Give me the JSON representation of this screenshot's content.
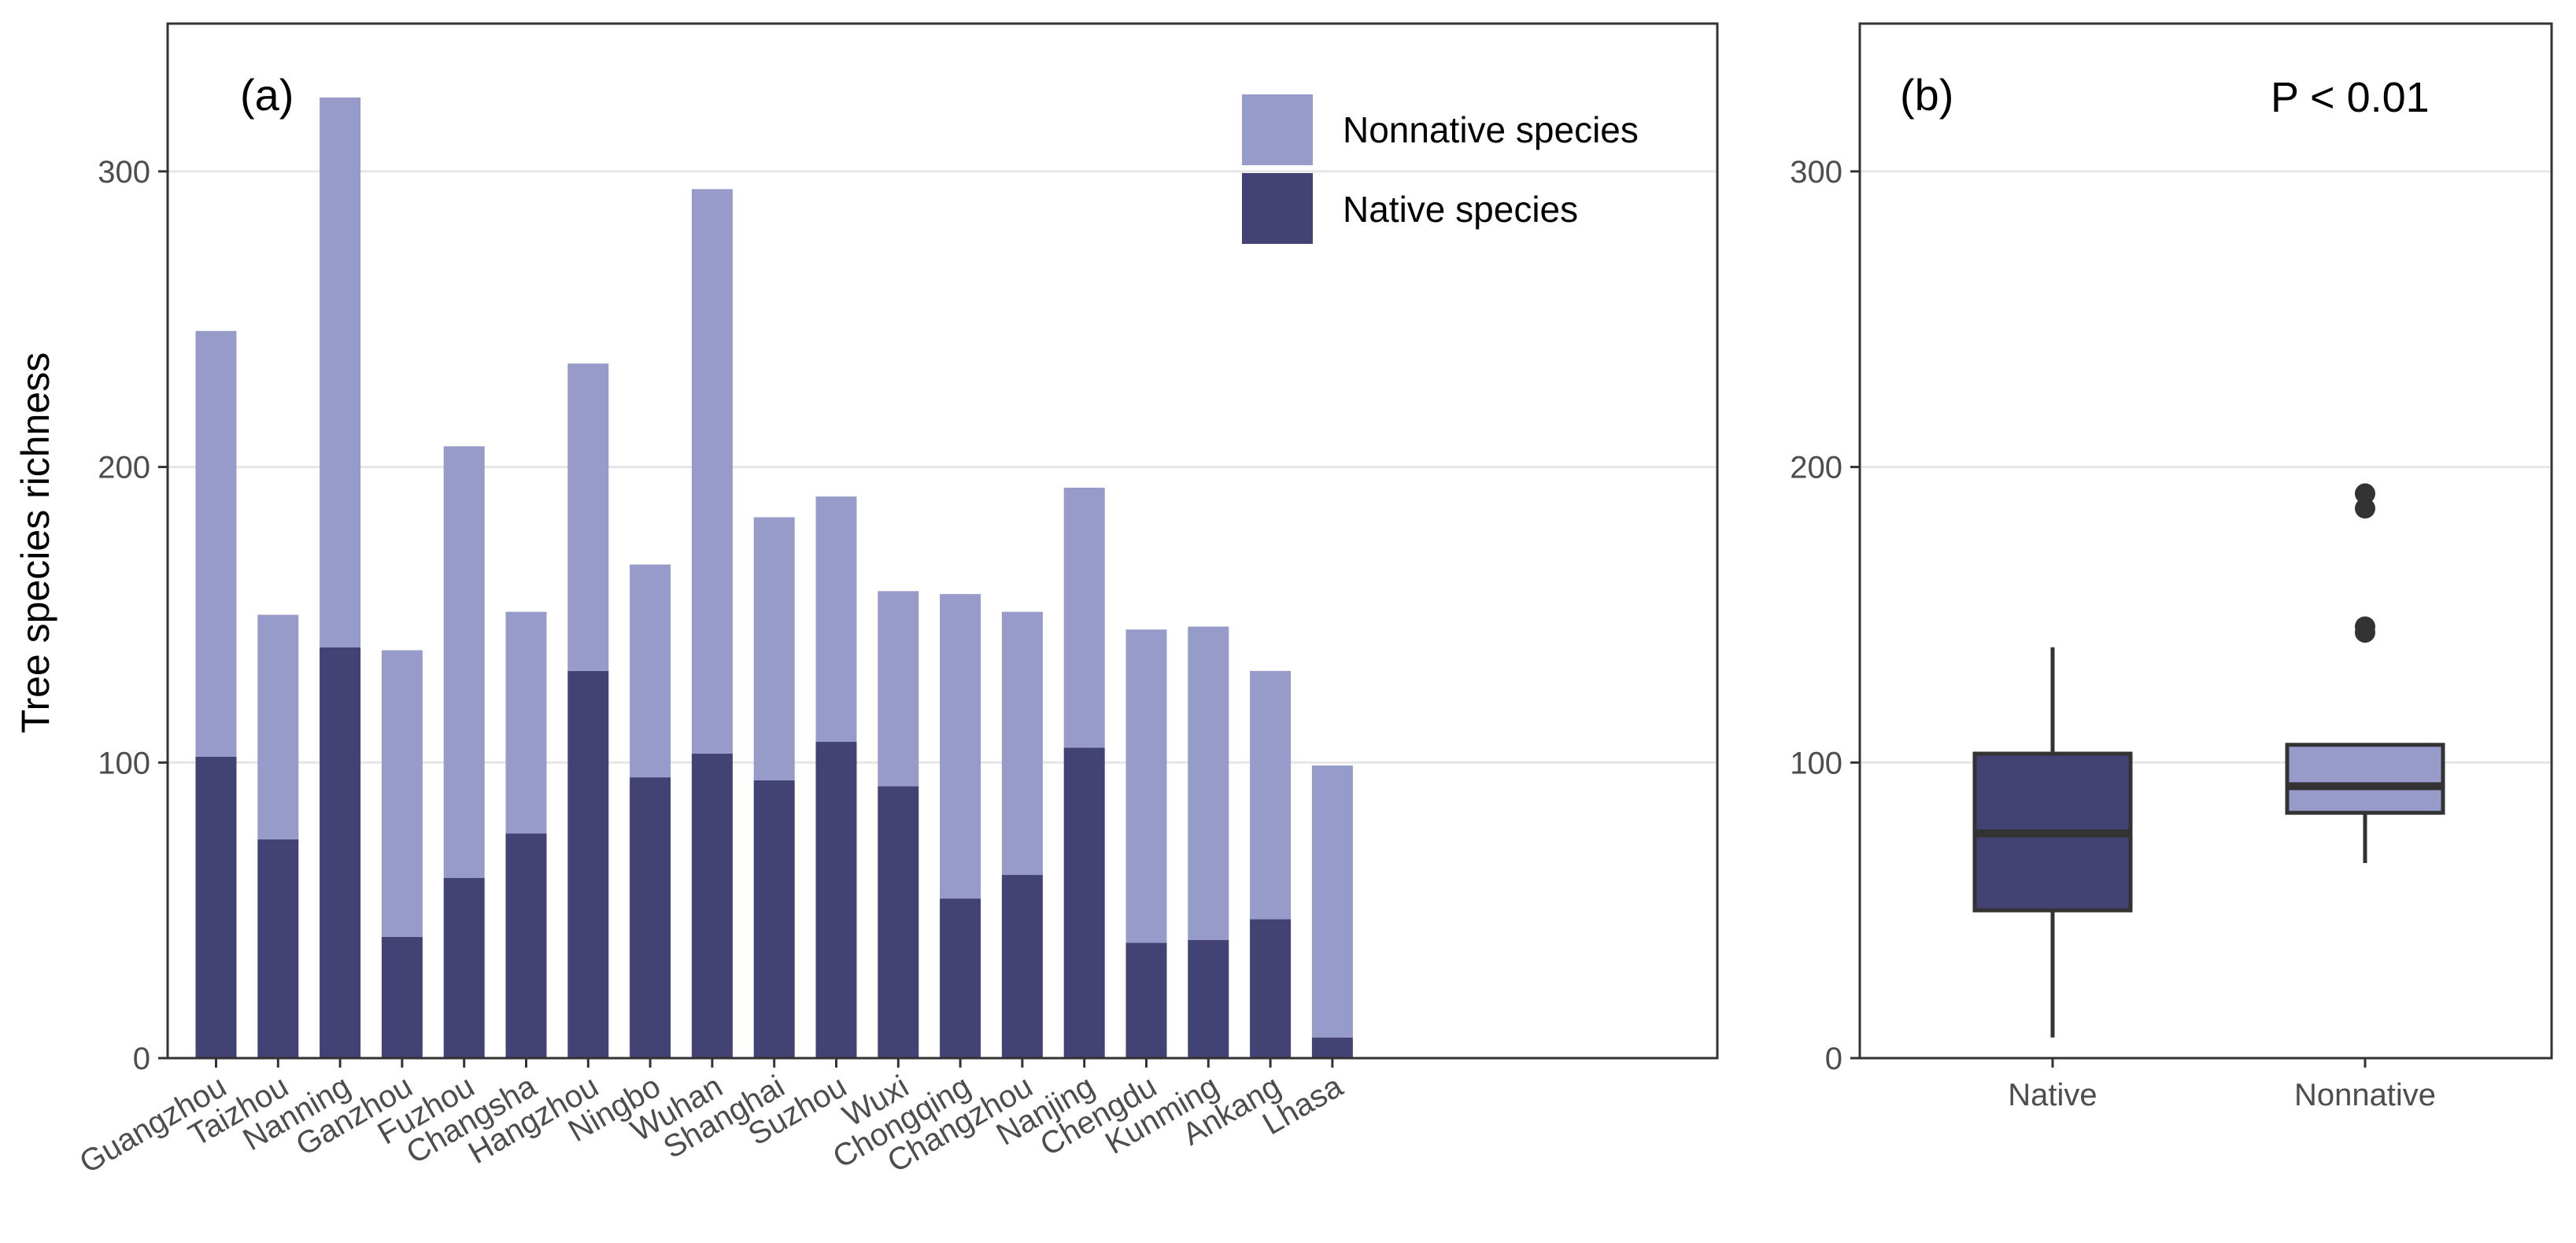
{
  "colors": {
    "native": "#434275",
    "nonnative": "#979bca",
    "grid": "#e6e6e6",
    "frame": "#333333",
    "outlier": "#333333"
  },
  "chart_data": [
    {
      "panel": "(a)",
      "type": "bar",
      "stacked": true,
      "ylabel": "Tree species richness",
      "xlabel": "",
      "ylim": [
        0,
        350
      ],
      "yticks": [
        0,
        100,
        200,
        300
      ],
      "grid": "horizontal",
      "legend_position": "top-right",
      "categories": [
        "Guangzhou",
        "Taizhou",
        "Nanning",
        "Ganzhou",
        "Fuzhou",
        "Changsha",
        "Hangzhou",
        "Ningbo",
        "Wuhan",
        "Shanghai",
        "Suzhou",
        "Wuxi",
        "Chongqing",
        "Changzhou",
        "Nanjing",
        "Chengdu",
        "Kunming",
        "Ankang",
        "Lhasa"
      ],
      "series": [
        {
          "name": "Native species",
          "color_key": "native",
          "values": [
            102,
            74,
            139,
            41,
            61,
            76,
            131,
            95,
            103,
            94,
            107,
            92,
            54,
            62,
            105,
            39,
            40,
            47,
            7
          ]
        },
        {
          "name": "Nonnative species",
          "color_key": "nonnative",
          "values": [
            144,
            76,
            186,
            97,
            146,
            75,
            104,
            72,
            191,
            89,
            83,
            66,
            103,
            89,
            88,
            106,
            106,
            84,
            92
          ]
        }
      ],
      "legend": [
        "Nonnative species",
        "Native species"
      ]
    },
    {
      "panel": "(b)",
      "type": "box",
      "annotation": "P < 0.01",
      "ylim": [
        0,
        350
      ],
      "yticks": [
        0,
        100,
        200,
        300
      ],
      "grid": "horizontal",
      "categories": [
        "Native",
        "Nonnative"
      ],
      "boxes": [
        {
          "name": "Native",
          "color_key": "native",
          "median_color": "#333333",
          "whisker_low": 7,
          "q1": 50,
          "median": 76,
          "q3": 103,
          "whisker_high": 139,
          "outliers": []
        },
        {
          "name": "Nonnative",
          "color_key": "nonnative",
          "median_color": "#333333",
          "whisker_low": 66,
          "q1": 83,
          "median": 92,
          "q3": 106,
          "whisker_high": 106,
          "outliers": [
            144,
            146,
            186,
            191
          ]
        }
      ]
    }
  ]
}
